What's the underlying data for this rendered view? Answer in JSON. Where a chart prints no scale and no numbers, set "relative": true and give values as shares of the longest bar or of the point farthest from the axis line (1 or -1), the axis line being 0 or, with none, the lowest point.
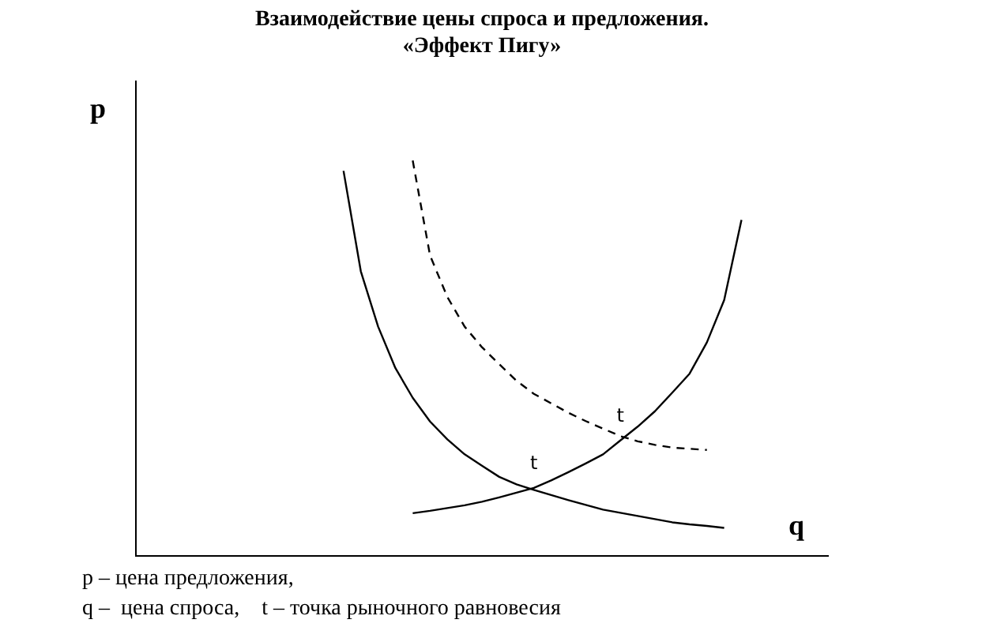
{
  "chart_data": {
    "type": "line",
    "title": "Взаимодействие цены спроса и предложения.",
    "subtitle": "«Эффект Пигу»",
    "xlabel": "q",
    "ylabel": "p",
    "relative": true,
    "grid": false,
    "legend": false,
    "marker": "none",
    "categories": [
      null,
      null,
      null,
      null,
      null,
      null,
      null,
      null,
      null,
      null,
      null,
      null,
      null,
      null,
      null,
      null,
      null,
      null,
      null,
      null,
      null,
      null,
      null,
      null,
      null,
      null,
      null,
      null,
      null,
      null,
      null,
      null,
      null,
      null,
      null,
      null,
      null,
      null,
      null,
      null,
      null
    ],
    "series": [
      {
        "color": "#000000",
        "line_style": "solid",
        "values": [
          null,
          null,
          null,
          null,
          null,
          null,
          null,
          null,
          null,
          null,
          null,
          null,
          0.974,
          0.72,
          0.58,
          0.475,
          0.4,
          0.34,
          0.295,
          0.257,
          0.228,
          0.2,
          0.181,
          0.167,
          0.154,
          0.141,
          0.129,
          0.117,
          0.109,
          0.101,
          0.093,
          0.085,
          0.08,
          0.076,
          0.071,
          null,
          null,
          null,
          null,
          null,
          null
        ]
      },
      {
        "color": "#000000",
        "line_style": "dashed",
        "values": [
          null,
          null,
          null,
          null,
          null,
          null,
          null,
          null,
          null,
          null,
          null,
          null,
          null,
          null,
          null,
          null,
          1.0,
          0.76,
          0.655,
          0.58,
          0.528,
          0.485,
          0.443,
          0.41,
          0.386,
          0.362,
          0.341,
          0.322,
          0.303,
          0.29,
          0.281,
          0.274,
          0.271,
          0.268,
          null,
          null,
          null,
          null,
          null,
          null,
          null
        ]
      },
      {
        "color": "#000000",
        "line_style": "solid",
        "values": [
          null,
          null,
          null,
          null,
          null,
          null,
          null,
          null,
          null,
          null,
          null,
          null,
          null,
          null,
          null,
          null,
          0.108,
          0.114,
          0.121,
          0.128,
          0.137,
          0.148,
          0.16,
          0.172,
          0.191,
          0.212,
          0.234,
          0.257,
          0.292,
          0.327,
          0.366,
          0.413,
          0.461,
          0.54,
          0.647,
          0.85,
          null,
          null,
          null,
          null,
          null
        ]
      }
    ],
    "annotations": [
      {
        "text": "t",
        "y": 0.172
      },
      {
        "text": "t",
        "y": 0.292
      },
      "p – цена предложения,",
      "q –  цена спроса,    t – точка рыночного равновесия"
    ]
  }
}
